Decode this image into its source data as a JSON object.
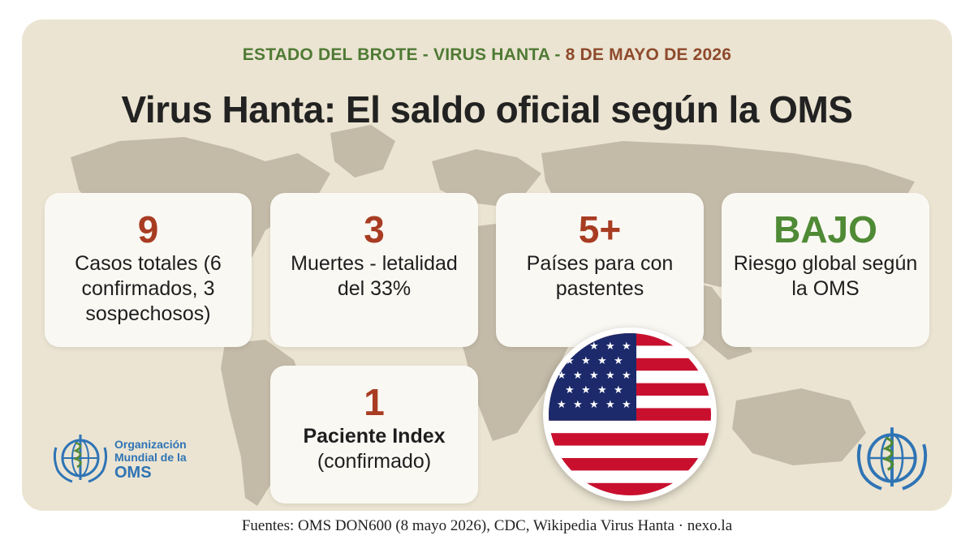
{
  "header": {
    "kicker_part1": "ESTADO DEL BROTE - VIRUS HANTA",
    "kicker_sep": " - ",
    "kicker_date": "8 DE MAYO DE 2026",
    "title": "Virus Hanta: El saldo oficial según la OMS"
  },
  "stats": [
    {
      "value": "9",
      "label": "Casos totales (6 confirmados, 3 sospechosos)"
    },
    {
      "value": "3",
      "label": "Muertes - letalidad del 33%"
    },
    {
      "value": "5+",
      "label": "Países para con pastentes"
    },
    {
      "value": "BAJO",
      "label": "Riesgo global según la OMS"
    }
  ],
  "index_patient": {
    "value": "1",
    "label_strong": "Paciente Index",
    "label": "(confirmado)"
  },
  "flag": {
    "icon": "us-flag-icon"
  },
  "org": {
    "line1": "Organización",
    "line2": "Mundial de la",
    "line3": "OMS"
  },
  "footer": {
    "sources": "Fuentes: OMS DON600 (8 mayo 2026), CDC, Wikipedia Virus Hanta · nexo.la"
  },
  "colors": {
    "background": "#ebe4d2",
    "accent_red": "#a83c22",
    "accent_green": "#4f8a35",
    "oms_blue": "#2f74b5"
  }
}
